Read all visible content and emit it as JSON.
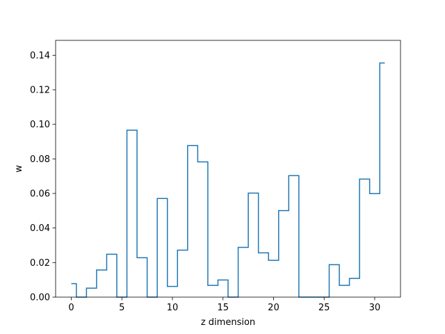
{
  "chart_data": {
    "type": "line",
    "drawstyle": "steps-mid",
    "title": "",
    "xlabel": "z dimension",
    "ylabel": "w",
    "xlim": [
      -1.55,
      32.55
    ],
    "ylim": [
      0,
      0.1486
    ],
    "grid": false,
    "legend": "none",
    "color": "#1f77b4",
    "x_ticks": [
      0,
      5,
      10,
      15,
      20,
      25,
      30
    ],
    "x_tick_labels": [
      "0",
      "5",
      "10",
      "15",
      "20",
      "25",
      "30"
    ],
    "y_ticks": [
      0.0,
      0.02,
      0.04,
      0.06,
      0.08,
      0.1,
      0.12,
      0.14
    ],
    "y_tick_labels": [
      "0.00",
      "0.02",
      "0.04",
      "0.06",
      "0.08",
      "0.10",
      "0.12",
      "0.14"
    ],
    "x": [
      0,
      1,
      2,
      3,
      4,
      5,
      6,
      7,
      8,
      9,
      10,
      11,
      12,
      13,
      14,
      15,
      16,
      17,
      18,
      19,
      20,
      21,
      22,
      23,
      24,
      25,
      26,
      27,
      28,
      29,
      30,
      31
    ],
    "values": [
      0.0078,
      0.0,
      0.0052,
      0.0157,
      0.0248,
      0.0,
      0.0966,
      0.0228,
      0.0,
      0.0571,
      0.0062,
      0.0272,
      0.0877,
      0.0783,
      0.0068,
      0.0099,
      0.0,
      0.0288,
      0.0602,
      0.0256,
      0.0213,
      0.0501,
      0.0703,
      0.0,
      0.0,
      0.0,
      0.0188,
      0.0068,
      0.0108,
      0.0683,
      0.0599,
      0.1355
    ]
  }
}
